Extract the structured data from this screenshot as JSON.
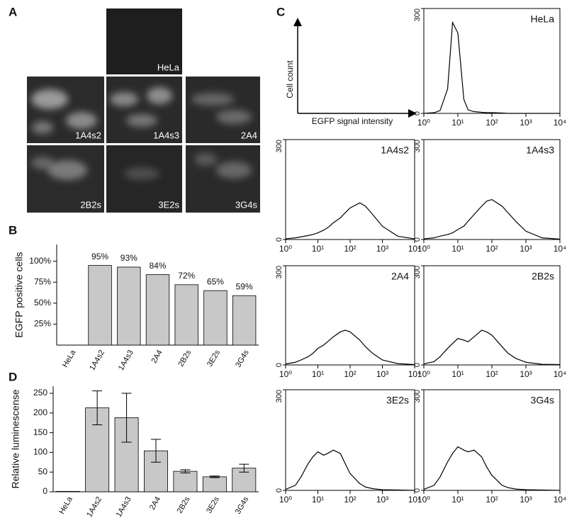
{
  "panel_letters": [
    "A",
    "B",
    "C",
    "D"
  ],
  "panel_a": {
    "labels": [
      "HeLa",
      "1A4s2",
      "1A4s3",
      "2A4",
      "2B2s",
      "3E2s",
      "3G4s"
    ]
  },
  "schematic": {
    "y_label": "Cell count",
    "x_label": "EGFP signal intensity"
  },
  "chart_data": [
    {
      "type": "bar",
      "y_label": "EGFP positive cells",
      "categories": [
        "HeLa",
        "1A4s2",
        "1A4s3",
        "2A4",
        "2B2s",
        "3E2s",
        "3G4s"
      ],
      "values": [
        0,
        95,
        93,
        84,
        72,
        65,
        59
      ],
      "value_labels": [
        null,
        "95%",
        "93%",
        "84%",
        "72%",
        "65%",
        "59%"
      ],
      "color": "#c8c8c8",
      "ylim": [
        0,
        120
      ],
      "yticks": [
        {
          "value": 25,
          "label": "25%"
        },
        {
          "value": 50,
          "label": "50%"
        },
        {
          "value": 75,
          "label": "75%"
        },
        {
          "value": 100,
          "label": "100%"
        }
      ]
    },
    {
      "type": "bar",
      "y_label": "Relative luminescense",
      "categories": [
        "HeLa",
        "1A4s2",
        "1A4s3",
        "2A4",
        "2B2s",
        "3E2s",
        "3G4s"
      ],
      "values": [
        1,
        213,
        188,
        104,
        52,
        38,
        60
      ],
      "errors": [
        null,
        43,
        62,
        29,
        4,
        2,
        10
      ],
      "color": "#c8c8c8",
      "ylim": [
        0,
        268
      ],
      "yticks": [
        0,
        50,
        100,
        150,
        200,
        250
      ]
    },
    {
      "type": "line",
      "label": "HeLa",
      "log_x": true,
      "color": "#000000",
      "x": [
        1,
        2,
        3,
        5,
        7,
        10,
        15,
        20,
        30,
        50,
        70,
        100,
        200,
        300,
        500,
        1000,
        3000,
        10000
      ],
      "values": [
        0,
        2,
        8,
        70,
        260,
        230,
        40,
        10,
        5,
        3,
        2,
        2,
        1,
        0,
        0,
        0,
        0,
        0
      ],
      "xlim": [
        1,
        10000
      ],
      "ylim": [
        0,
        300
      ],
      "xticks": [
        {
          "value": 1,
          "label": "10⁰"
        },
        {
          "value": 10,
          "label": "10¹"
        },
        {
          "value": 100,
          "label": "10²"
        },
        {
          "value": 1000,
          "label": "10³"
        },
        {
          "value": 10000,
          "label": "10⁴"
        }
      ],
      "yticks": [
        0,
        300
      ]
    },
    {
      "type": "line",
      "label": "1A4s2",
      "log_x": true,
      "color": "#000000",
      "x": [
        1,
        2,
        3,
        5,
        7,
        10,
        15,
        20,
        30,
        50,
        70,
        100,
        200,
        300,
        500,
        1000,
        3000,
        10000
      ],
      "values": [
        2,
        5,
        8,
        12,
        15,
        20,
        28,
        35,
        50,
        65,
        80,
        95,
        110,
        100,
        75,
        40,
        10,
        2
      ],
      "xlim": [
        1,
        10000
      ],
      "ylim": [
        0,
        300
      ],
      "xticks": [
        {
          "value": 1,
          "label": "10⁰"
        },
        {
          "value": 10,
          "label": "10¹"
        },
        {
          "value": 100,
          "label": "10²"
        },
        {
          "value": 1000,
          "label": "10³"
        },
        {
          "value": 10000,
          "label": "10⁴"
        }
      ],
      "yticks": [
        0,
        300
      ]
    },
    {
      "type": "line",
      "label": "1A4s3",
      "log_x": true,
      "color": "#000000",
      "x": [
        1,
        2,
        3,
        5,
        7,
        10,
        15,
        20,
        30,
        50,
        70,
        100,
        200,
        300,
        500,
        1000,
        3000,
        10000
      ],
      "values": [
        2,
        5,
        10,
        15,
        20,
        30,
        40,
        55,
        75,
        100,
        115,
        120,
        100,
        80,
        55,
        25,
        5,
        1
      ],
      "xlim": [
        1,
        10000
      ],
      "ylim": [
        0,
        300
      ],
      "xticks": [
        {
          "value": 1,
          "label": "10⁰"
        },
        {
          "value": 10,
          "label": "10¹"
        },
        {
          "value": 100,
          "label": "10²"
        },
        {
          "value": 1000,
          "label": "10³"
        },
        {
          "value": 10000,
          "label": "10⁴"
        }
      ],
      "yticks": [
        0,
        300
      ]
    },
    {
      "type": "line",
      "label": "2A4",
      "log_x": true,
      "color": "#000000",
      "x": [
        1,
        2,
        3,
        5,
        7,
        10,
        15,
        20,
        30,
        50,
        70,
        100,
        200,
        300,
        500,
        1000,
        3000,
        10000
      ],
      "values": [
        3,
        8,
        15,
        25,
        35,
        50,
        60,
        70,
        85,
        100,
        105,
        100,
        75,
        55,
        35,
        15,
        4,
        1
      ],
      "xlim": [
        1,
        10000
      ],
      "ylim": [
        0,
        300
      ],
      "xticks": [
        {
          "value": 1,
          "label": "10⁰"
        },
        {
          "value": 10,
          "label": "10¹"
        },
        {
          "value": 100,
          "label": "10²"
        },
        {
          "value": 1000,
          "label": "10³"
        },
        {
          "value": 10000,
          "label": "10⁴"
        }
      ],
      "yticks": [
        0,
        300
      ]
    },
    {
      "type": "line",
      "label": "2B2s",
      "log_x": true,
      "color": "#000000",
      "x": [
        1,
        2,
        3,
        5,
        7,
        10,
        15,
        20,
        30,
        50,
        70,
        100,
        200,
        300,
        500,
        1000,
        3000,
        10000
      ],
      "values": [
        3,
        10,
        25,
        50,
        65,
        80,
        75,
        70,
        85,
        105,
        100,
        90,
        55,
        35,
        20,
        8,
        2,
        1
      ],
      "xlim": [
        1,
        10000
      ],
      "ylim": [
        0,
        300
      ],
      "xticks": [
        {
          "value": 1,
          "label": "10⁰"
        },
        {
          "value": 10,
          "label": "10¹"
        },
        {
          "value": 100,
          "label": "10²"
        },
        {
          "value": 1000,
          "label": "10³"
        },
        {
          "value": 10000,
          "label": "10⁴"
        }
      ],
      "yticks": [
        0,
        300
      ]
    },
    {
      "type": "line",
      "label": "3E2s",
      "log_x": true,
      "color": "#000000",
      "x": [
        1,
        2,
        3,
        5,
        7,
        10,
        15,
        20,
        30,
        50,
        70,
        100,
        200,
        300,
        500,
        1000,
        3000,
        10000
      ],
      "values": [
        3,
        15,
        40,
        80,
        100,
        115,
        105,
        110,
        120,
        110,
        80,
        50,
        20,
        10,
        5,
        2,
        1,
        0
      ],
      "xlim": [
        1,
        10000
      ],
      "ylim": [
        0,
        300
      ],
      "xticks": [
        {
          "value": 1,
          "label": "10⁰"
        },
        {
          "value": 10,
          "label": "10¹"
        },
        {
          "value": 100,
          "label": "10²"
        },
        {
          "value": 1000,
          "label": "10³"
        },
        {
          "value": 10000,
          "label": "10⁴"
        }
      ],
      "yticks": [
        0,
        300
      ]
    },
    {
      "type": "line",
      "label": "3G4s",
      "log_x": true,
      "color": "#000000",
      "x": [
        1,
        2,
        3,
        5,
        7,
        10,
        15,
        20,
        30,
        50,
        70,
        100,
        200,
        300,
        500,
        1000,
        3000,
        10000
      ],
      "values": [
        3,
        15,
        40,
        85,
        110,
        130,
        120,
        115,
        120,
        100,
        70,
        45,
        15,
        8,
        4,
        2,
        1,
        0
      ],
      "xlim": [
        1,
        10000
      ],
      "ylim": [
        0,
        300
      ],
      "xticks": [
        {
          "value": 1,
          "label": "10⁰"
        },
        {
          "value": 10,
          "label": "10¹"
        },
        {
          "value": 100,
          "label": "10²"
        },
        {
          "value": 1000,
          "label": "10³"
        },
        {
          "value": 10000,
          "label": "10⁴"
        }
      ],
      "yticks": [
        0,
        300
      ]
    }
  ]
}
